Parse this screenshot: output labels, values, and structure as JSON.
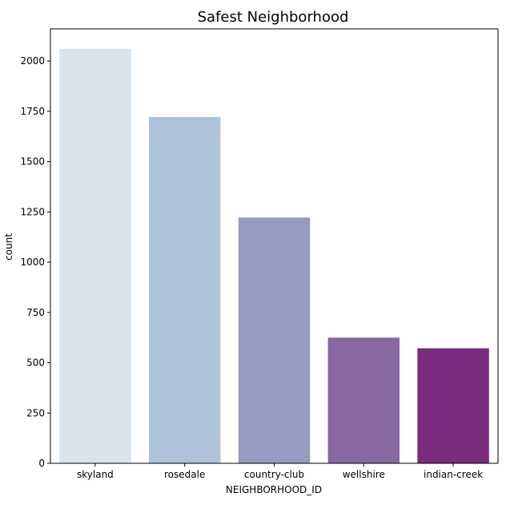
{
  "chart_data": {
    "type": "bar",
    "title": "Safest Neighborhood",
    "xlabel": "NEIGHBORHOOD_ID",
    "ylabel": "count",
    "categories": [
      "skyland",
      "rosedale",
      "country-club",
      "wellshire",
      "indian-creek"
    ],
    "values": [
      2060,
      1722,
      1222,
      625,
      572
    ],
    "colors": [
      "#d9e3ee",
      "#aec3d9",
      "#949ac0",
      "#8867a2",
      "#782c7b"
    ],
    "yticks": [
      0,
      250,
      500,
      750,
      1000,
      1250,
      1500,
      1750,
      2000
    ],
    "ylim": [
      0,
      2160
    ],
    "grid": false,
    "legend": false
  }
}
